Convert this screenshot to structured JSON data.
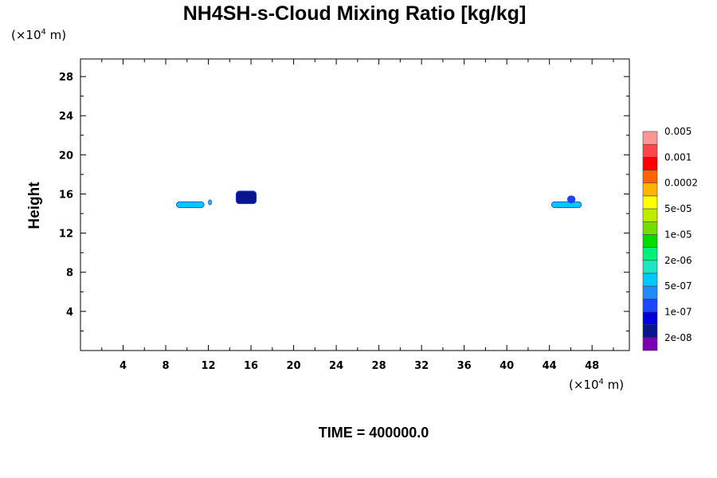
{
  "chart_data": {
    "type": "contour",
    "title": "NH4SH-s-Cloud Mixing Ratio [kg/kg]",
    "xlabel": "",
    "ylabel": "Height",
    "x_unit": "(×10",
    "x_unit_exp": "4",
    "x_unit_tail": " m)",
    "y_unit": "(×10",
    "y_unit_exp": "4",
    "y_unit_tail": " m)",
    "xlim": [
      0,
      51.5
    ],
    "ylim": [
      0,
      29.8
    ],
    "x_ticks": [
      4,
      8,
      12,
      16,
      20,
      24,
      28,
      32,
      36,
      40,
      44,
      48
    ],
    "y_ticks": [
      4,
      8,
      12,
      16,
      20,
      24,
      28
    ],
    "grid": false,
    "footer": "TIME = 400000.0",
    "colorbar": {
      "colors": [
        "#7b00b4",
        "#0a148c",
        "#0000dc",
        "#1e46ff",
        "#1e8cff",
        "#00c8ff",
        "#1ee6be",
        "#00f078",
        "#00dc00",
        "#78dc00",
        "#beeb00",
        "#ffff00",
        "#ffb400",
        "#ff6400",
        "#ff0000",
        "#ff4646",
        "#ff9696"
      ],
      "labels": [
        "2e-08",
        "1e-07",
        "5e-07",
        "2e-06",
        "1e-05",
        "5e-05",
        "0.0002",
        "0.001",
        "0.005"
      ]
    },
    "features": [
      {
        "x": [
          9.0,
          11.6
        ],
        "y": [
          14.6,
          15.2
        ],
        "level": "5e-07"
      },
      {
        "x": [
          12.0,
          12.3
        ],
        "y": [
          14.9,
          15.4
        ],
        "level": "5e-07"
      },
      {
        "x": [
          14.6,
          16.5
        ],
        "y": [
          15.0,
          16.3
        ],
        "level": "2e-08"
      },
      {
        "x": [
          44.2,
          47.0
        ],
        "y": [
          14.6,
          15.2
        ],
        "level": "5e-07"
      },
      {
        "x": [
          45.7,
          46.4
        ],
        "y": [
          15.1,
          15.8
        ],
        "level": "1e-07"
      }
    ]
  }
}
